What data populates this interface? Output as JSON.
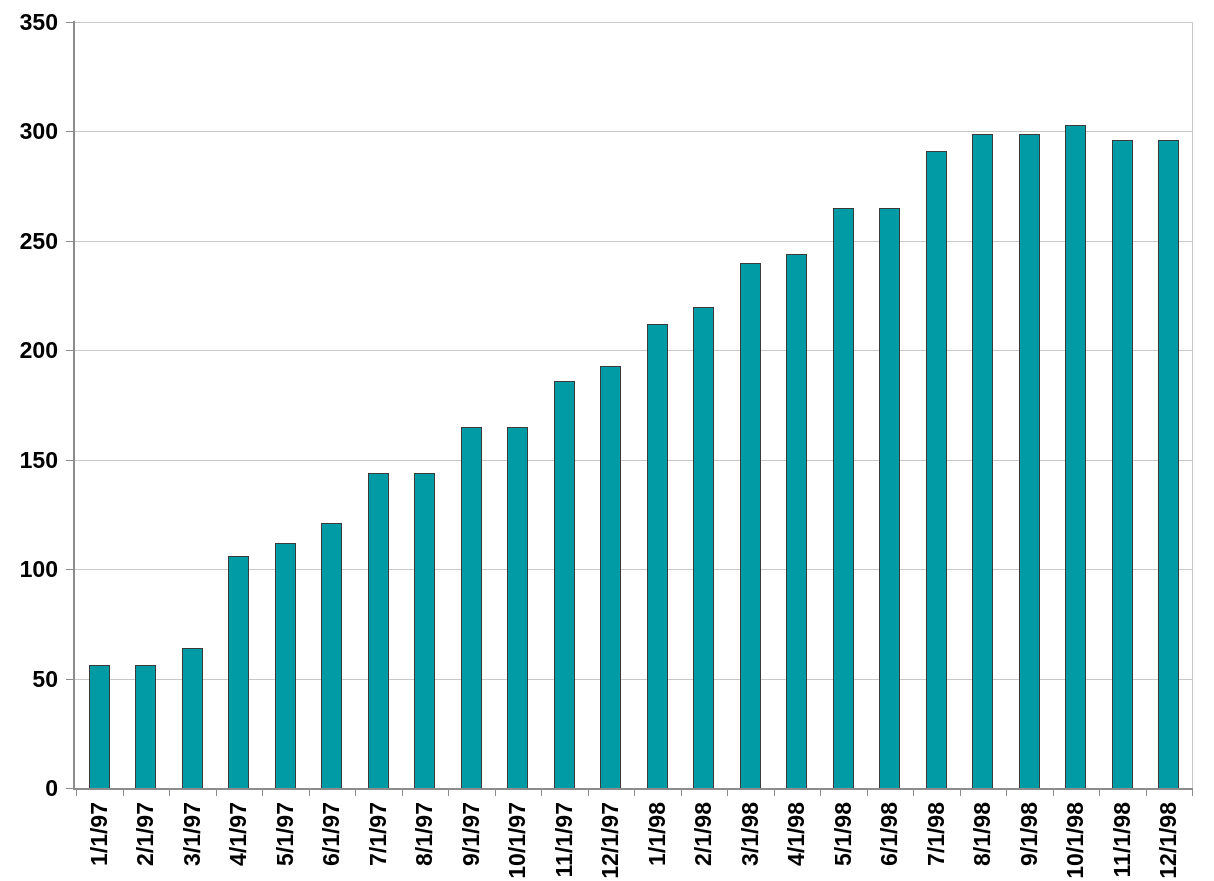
{
  "chart_data": {
    "type": "bar",
    "title": "",
    "xlabel": "",
    "ylabel": "",
    "categories": [
      "1/1/97",
      "2/1/97",
      "3/1/97",
      "4/1/97",
      "5/1/97",
      "6/1/97",
      "7/1/97",
      "8/1/97",
      "9/1/97",
      "10/1/97",
      "11/1/97",
      "12/1/97",
      "1/1/98",
      "2/1/98",
      "3/1/98",
      "4/1/98",
      "5/1/98",
      "6/1/98",
      "7/1/98",
      "8/1/98",
      "9/1/98",
      "10/1/98",
      "11/1/98",
      "12/1/98"
    ],
    "values": [
      56,
      56,
      64,
      106,
      112,
      121,
      144,
      144,
      165,
      165,
      186,
      193,
      212,
      220,
      240,
      244,
      265,
      265,
      291,
      299,
      299,
      303,
      296,
      296
    ],
    "ylim": [
      0,
      350
    ],
    "yticks": [
      0,
      50,
      100,
      150,
      200,
      250,
      300,
      350
    ],
    "grid": true,
    "legend_position": "none",
    "x_labels_rotated_degrees": -90
  },
  "colors": {
    "bar_fill": "#009BA4",
    "bar_border": "#3A3A3A",
    "gridline": "#C8C8C8",
    "axis": "#8C8C8C",
    "label_text": "#000000",
    "background": "#FFFFFF"
  }
}
